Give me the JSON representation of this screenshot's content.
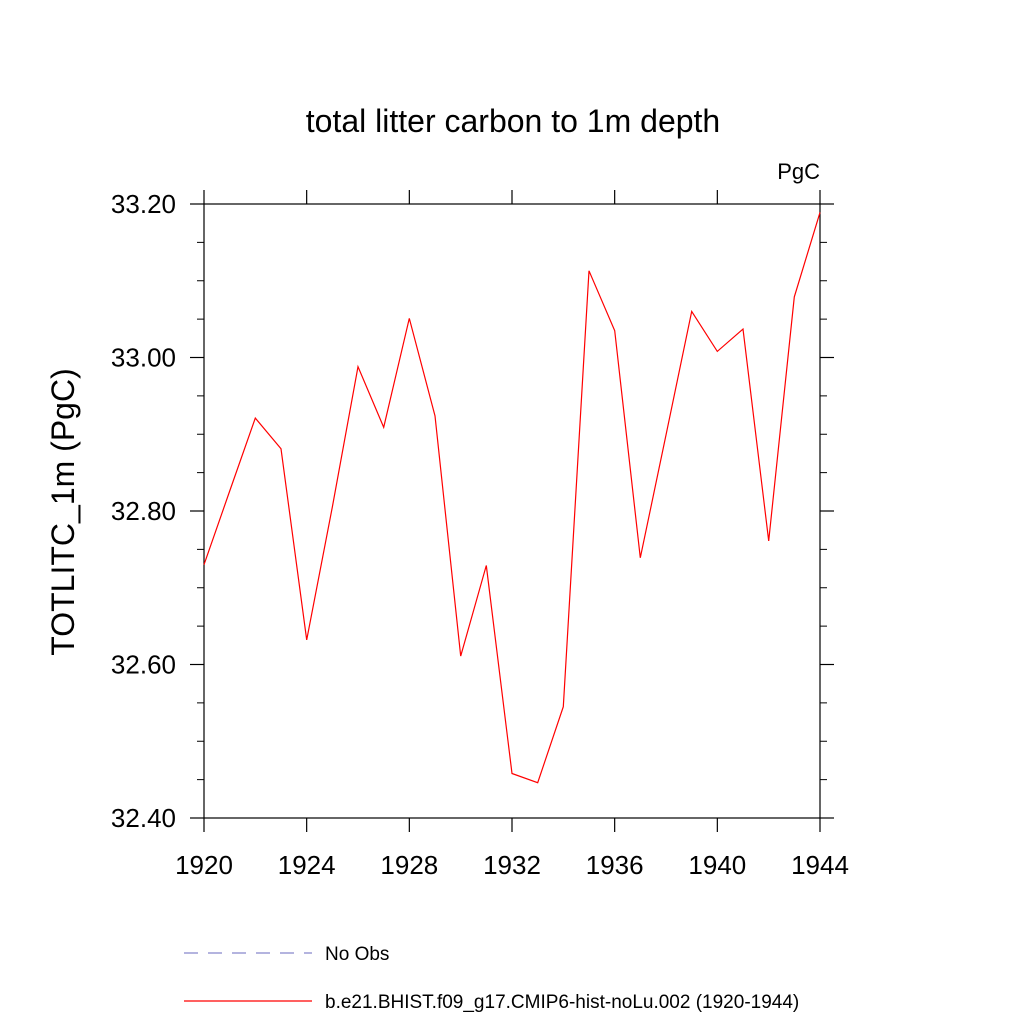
{
  "chart_data": {
    "type": "line",
    "title": "total litter carbon to 1m depth",
    "units_label": "PgC",
    "xlabel": "",
    "ylabel": "TOTLITC_1m  (PgC)",
    "xlim": [
      1920,
      1944
    ],
    "ylim": [
      32.4,
      33.2
    ],
    "x_ticks": [
      1920,
      1924,
      1928,
      1932,
      1936,
      1940,
      1944
    ],
    "x_tick_labels": [
      "1920",
      "1924",
      "1928",
      "1932",
      "1936",
      "1940",
      "1944"
    ],
    "y_ticks": [
      32.4,
      32.6,
      32.8,
      33.0,
      33.2
    ],
    "y_tick_labels": [
      "32.40",
      "32.60",
      "32.80",
      "33.00",
      "33.20"
    ],
    "grid": false,
    "legend_position": "bottom",
    "series": [
      {
        "name": "No Obs",
        "color": "#8888cc",
        "style": "dashed",
        "x": [],
        "values": []
      },
      {
        "name": "b.e21.BHIST.f09_g17.CMIP6-hist-noLu.002 (1920-1944)",
        "color": "#ff0000",
        "style": "solid",
        "x": [
          1920,
          1921,
          1922,
          1923,
          1924,
          1925,
          1926,
          1927,
          1928,
          1929,
          1930,
          1931,
          1932,
          1933,
          1934,
          1935,
          1936,
          1937,
          1938,
          1939,
          1940,
          1941,
          1942,
          1943,
          1944
        ],
        "values": [
          32.73,
          32.826,
          32.921,
          32.881,
          32.632,
          32.805,
          32.988,
          32.909,
          33.051,
          32.924,
          32.611,
          32.729,
          32.458,
          32.446,
          32.545,
          33.113,
          33.035,
          32.739,
          32.899,
          33.06,
          33.008,
          33.037,
          32.761,
          33.079,
          33.189
        ]
      }
    ]
  }
}
